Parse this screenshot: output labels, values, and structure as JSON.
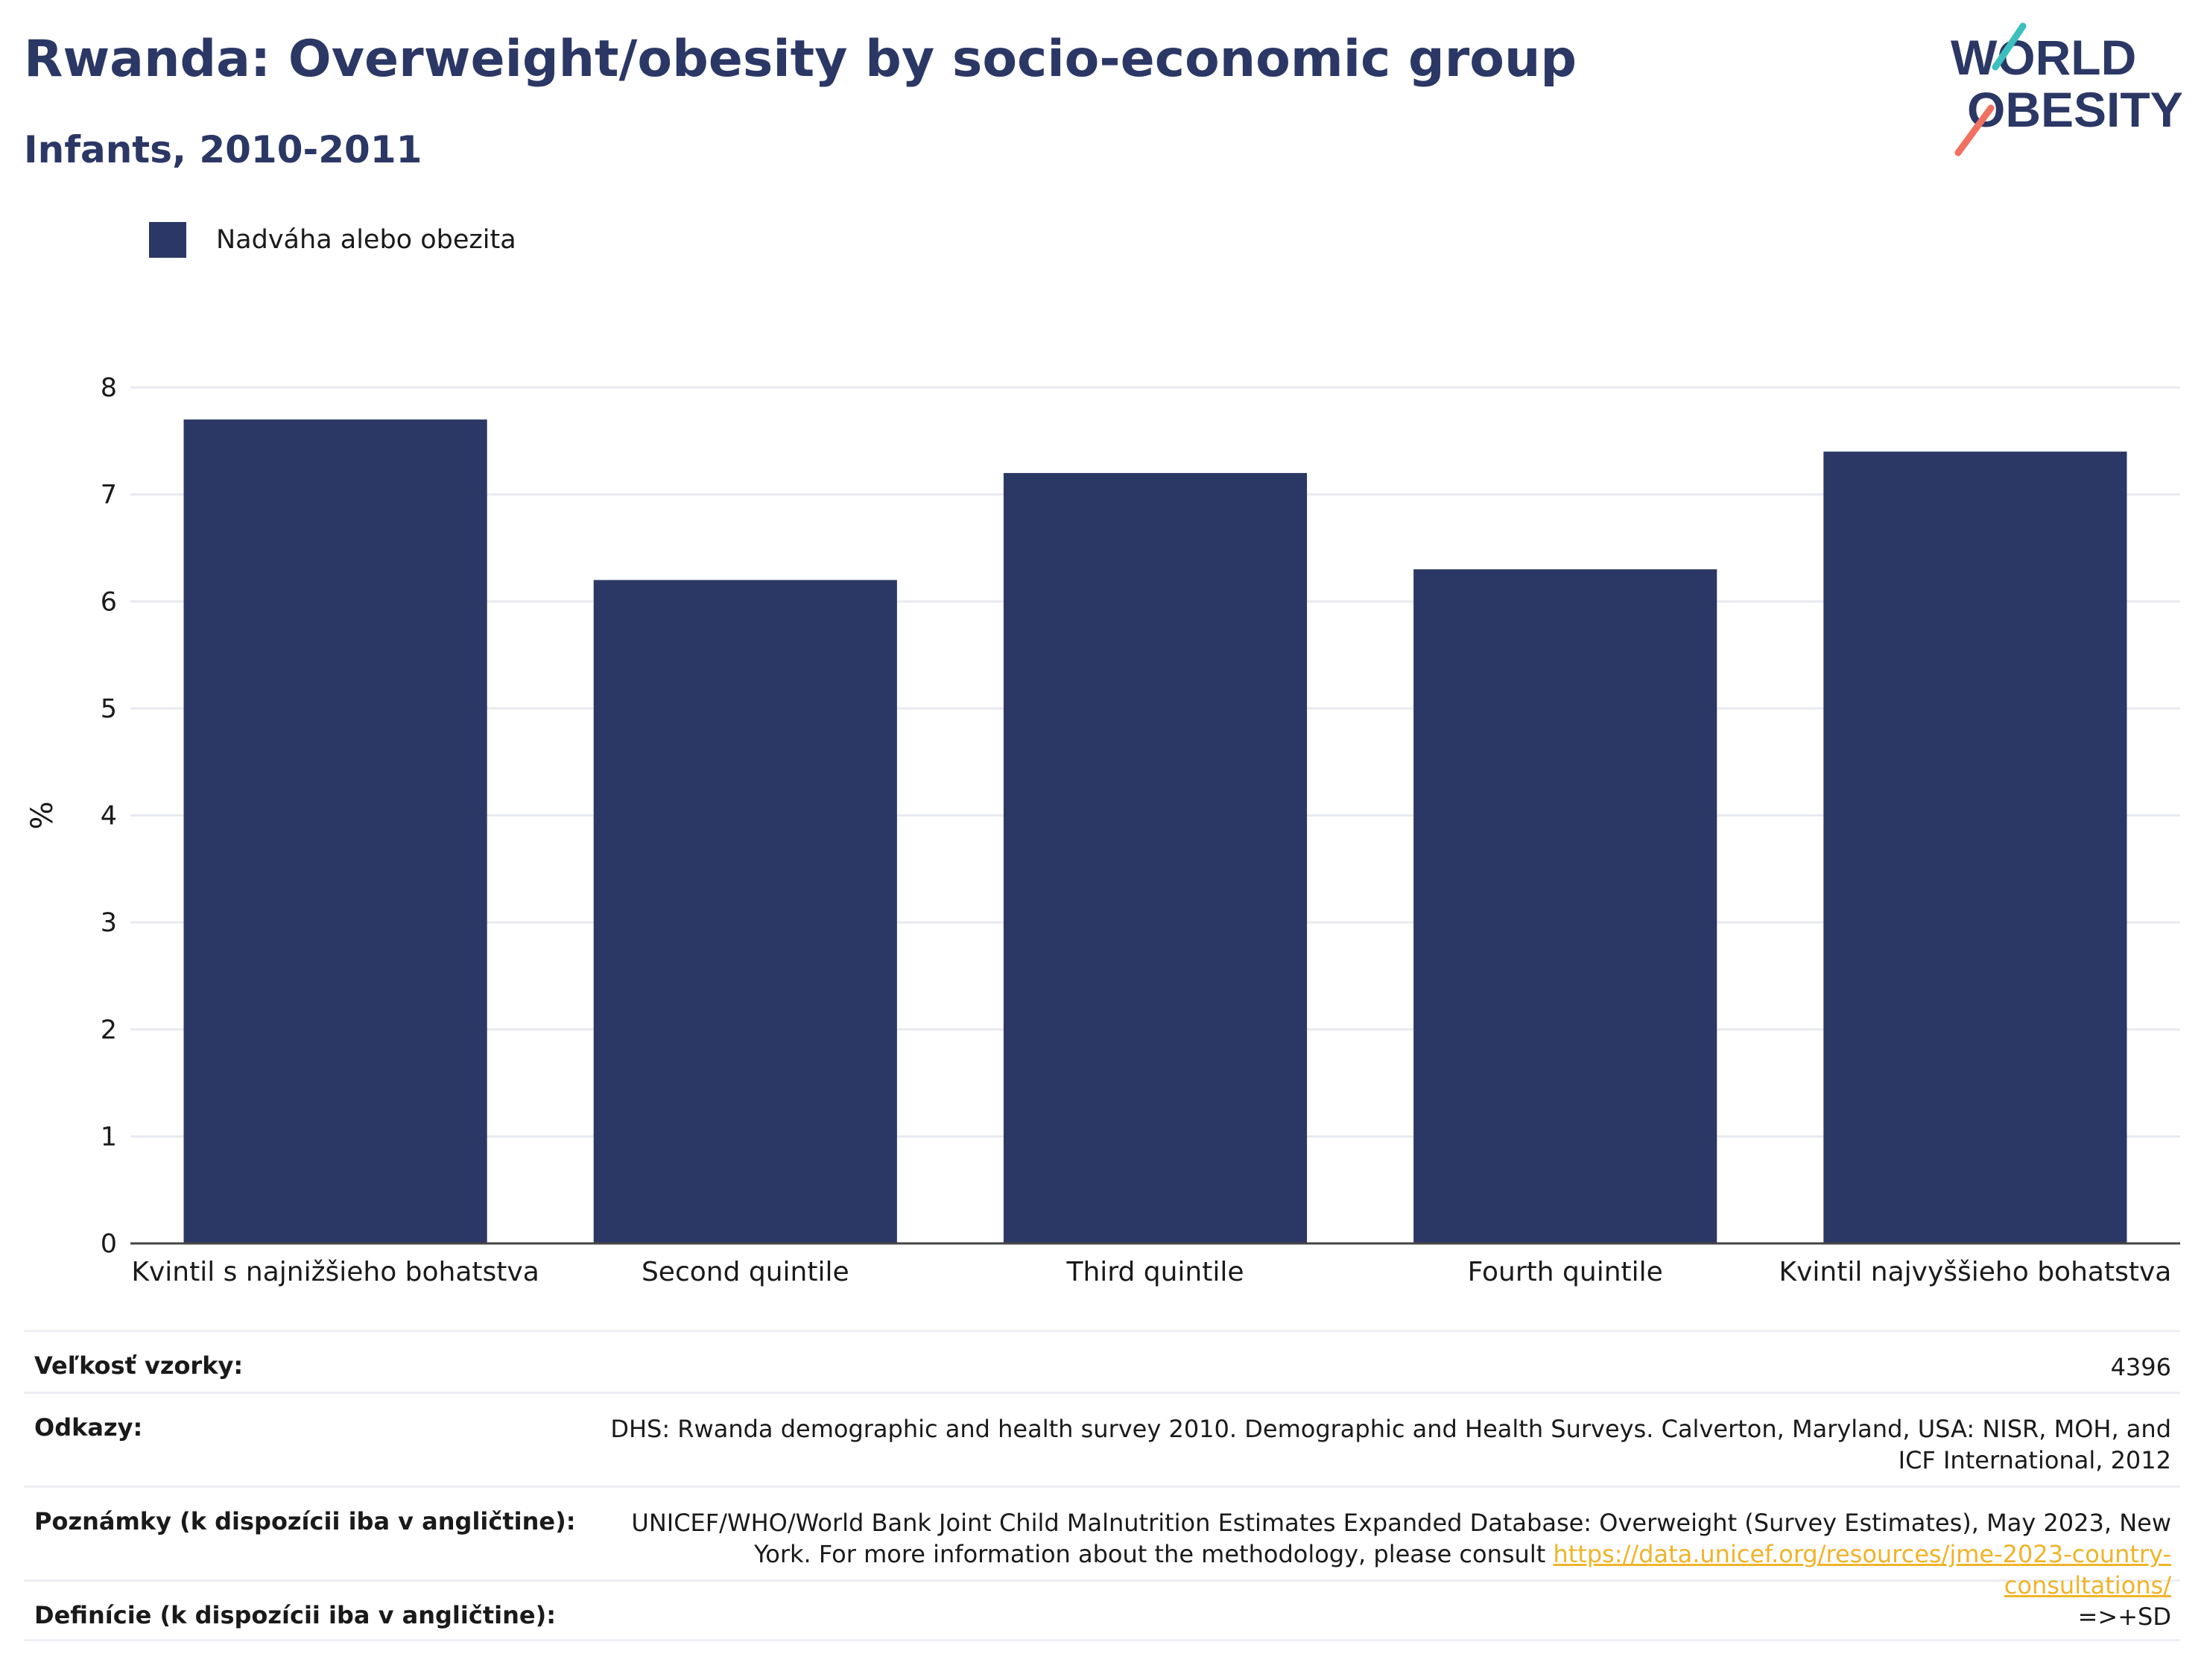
{
  "header": {
    "title": "Rwanda: Overweight/obesity by socio-economic group",
    "subtitle": "Infants, 2010-2011"
  },
  "logo": {
    "line1": "WORLD",
    "line2": "OBESITY"
  },
  "legend": {
    "label": "Nadváha alebo obezita",
    "color": "#2b3765"
  },
  "chart_data": {
    "type": "bar",
    "categories": [
      "Kvintil s najnižšieho bohatstva",
      "Second quintile",
      "Third quintile",
      "Fourth quintile",
      "Kvintil najvyššieho bohatstva"
    ],
    "series": [
      {
        "name": "Nadváha alebo obezita",
        "values": [
          7.7,
          6.2,
          7.2,
          6.3,
          7.4
        ],
        "color": "#2b3765"
      }
    ],
    "ylabel": "%",
    "xlabel": "",
    "ylim": [
      0,
      8
    ],
    "yticks": [
      0,
      1,
      2,
      3,
      4,
      5,
      6,
      7,
      8
    ],
    "grid": true
  },
  "info": {
    "sample_size": {
      "label": "Veľkosť vzorky:",
      "value": "4396"
    },
    "references": {
      "label": "Odkazy:",
      "value": "DHS: Rwanda demographic and health survey 2010. Demographic and Health Surveys. Calverton, Maryland, USA: NISR, MOH, and ICF International, 2012"
    },
    "notes": {
      "label": "Poznámky (k dispozícii iba v angličtine):",
      "text": "UNICEF/WHO/World Bank Joint Child Malnutrition Estimates Expanded Database: Overweight (Survey Estimates), May 2023, New York. For more information about the methodology, please consult",
      "link": "https://data.unicef.org/resources/jme-2023-country-consultations/"
    },
    "definitions": {
      "label": "Definície (k dispozícii iba v angličtine):",
      "value": "=>+SD"
    }
  }
}
